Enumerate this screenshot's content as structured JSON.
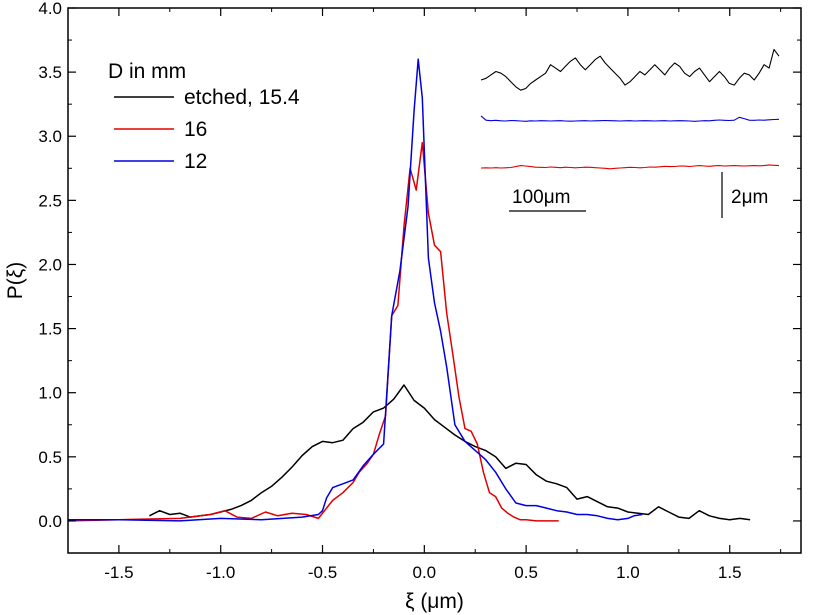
{
  "chart_data": {
    "type": "line",
    "xlabel": "ξ (μm)",
    "ylabel": "P(ξ)",
    "xlim": [
      -1.75,
      1.85
    ],
    "ylim": [
      -0.25,
      4.0
    ],
    "x_ticks": [
      -1.5,
      -1.0,
      -0.5,
      0.0,
      0.5,
      1.0,
      1.5
    ],
    "x_tick_labels": [
      "-1.5",
      "-1.0",
      "-0.5",
      "0.0",
      "0.5",
      "1.0",
      "1.5"
    ],
    "y_ticks": [
      0.0,
      0.5,
      1.0,
      1.5,
      2.0,
      2.5,
      3.0,
      3.5,
      4.0
    ],
    "y_tick_labels": [
      "0.0",
      "0.5",
      "1.0",
      "1.5",
      "2.0",
      "2.5",
      "3.0",
      "3.5",
      "4.0"
    ],
    "legend": {
      "title": "D in mm",
      "placement": "top-left",
      "entries": [
        "etched, 15.4",
        "16",
        "12"
      ]
    },
    "series": [
      {
        "name": "etched, 15.4",
        "color": "#000000",
        "x": [
          -1.35,
          -1.3,
          -1.25,
          -1.2,
          -1.15,
          -1.1,
          -1.05,
          -1.0,
          -0.95,
          -0.9,
          -0.85,
          -0.8,
          -0.75,
          -0.7,
          -0.65,
          -0.6,
          -0.55,
          -0.5,
          -0.45,
          -0.4,
          -0.35,
          -0.3,
          -0.25,
          -0.2,
          -0.15,
          -0.1,
          -0.05,
          0.0,
          0.05,
          0.1,
          0.15,
          0.2,
          0.25,
          0.3,
          0.35,
          0.4,
          0.45,
          0.5,
          0.55,
          0.6,
          0.65,
          0.7,
          0.75,
          0.8,
          0.85,
          0.9,
          0.95,
          1.0,
          1.05,
          1.1,
          1.15,
          1.2,
          1.25,
          1.3,
          1.35,
          1.4,
          1.45,
          1.5,
          1.55,
          1.6
        ],
        "y": [
          0.04,
          0.08,
          0.05,
          0.06,
          0.03,
          0.04,
          0.05,
          0.07,
          0.09,
          0.12,
          0.16,
          0.22,
          0.27,
          0.34,
          0.42,
          0.51,
          0.58,
          0.62,
          0.61,
          0.63,
          0.72,
          0.77,
          0.85,
          0.88,
          0.95,
          1.06,
          0.94,
          0.88,
          0.79,
          0.73,
          0.67,
          0.62,
          0.58,
          0.55,
          0.5,
          0.41,
          0.45,
          0.44,
          0.36,
          0.31,
          0.29,
          0.26,
          0.17,
          0.19,
          0.15,
          0.11,
          0.1,
          0.07,
          0.06,
          0.05,
          0.11,
          0.07,
          0.03,
          0.02,
          0.08,
          0.04,
          0.02,
          0.01,
          0.02,
          0.01
        ]
      },
      {
        "name": "16",
        "color": "#e00000",
        "x": [
          -1.75,
          -1.5,
          -1.2,
          -1.05,
          -0.98,
          -0.92,
          -0.85,
          -0.78,
          -0.72,
          -0.65,
          -0.58,
          -0.52,
          -0.45,
          -0.4,
          -0.35,
          -0.32,
          -0.28,
          -0.25,
          -0.22,
          -0.19,
          -0.16,
          -0.13,
          -0.1,
          -0.07,
          -0.04,
          -0.01,
          0.02,
          0.05,
          0.08,
          0.11,
          0.14,
          0.17,
          0.2,
          0.23,
          0.26,
          0.29,
          0.32,
          0.35,
          0.38,
          0.41,
          0.44,
          0.47,
          0.5,
          0.55,
          0.6,
          0.66
        ],
        "y": [
          0.0,
          0.01,
          0.02,
          0.05,
          0.08,
          0.03,
          0.02,
          0.07,
          0.04,
          0.06,
          0.05,
          0.02,
          0.16,
          0.22,
          0.3,
          0.38,
          0.45,
          0.52,
          0.68,
          0.82,
          1.6,
          1.68,
          2.3,
          2.75,
          2.58,
          2.95,
          2.4,
          2.15,
          2.1,
          1.62,
          1.3,
          0.97,
          0.72,
          0.7,
          0.6,
          0.38,
          0.22,
          0.19,
          0.1,
          0.06,
          0.03,
          0.01,
          0.01,
          0.0,
          0.0,
          0.0
        ]
      },
      {
        "name": "12",
        "color": "#0000e0",
        "x": [
          -1.75,
          -1.5,
          -1.2,
          -1.0,
          -0.8,
          -0.6,
          -0.52,
          -0.5,
          -0.48,
          -0.45,
          -0.4,
          -0.35,
          -0.3,
          -0.25,
          -0.2,
          -0.16,
          -0.12,
          -0.08,
          -0.05,
          -0.03,
          -0.01,
          0.02,
          0.05,
          0.08,
          0.11,
          0.15,
          0.2,
          0.25,
          0.3,
          0.35,
          0.4,
          0.45,
          0.5,
          0.55,
          0.6,
          0.65,
          0.7,
          0.75,
          0.8,
          0.85,
          0.9,
          0.95,
          1.0,
          1.03,
          1.07
        ],
        "y": [
          0.01,
          0.01,
          0.0,
          0.02,
          0.01,
          0.03,
          0.05,
          0.08,
          0.18,
          0.26,
          0.29,
          0.32,
          0.43,
          0.52,
          0.6,
          1.6,
          1.95,
          2.45,
          3.2,
          3.6,
          3.3,
          2.05,
          1.7,
          1.48,
          1.2,
          0.75,
          0.62,
          0.55,
          0.48,
          0.38,
          0.25,
          0.14,
          0.12,
          0.12,
          0.1,
          0.08,
          0.07,
          0.05,
          0.05,
          0.04,
          0.02,
          0.01,
          0.02,
          0.04,
          0.05
        ]
      }
    ],
    "inset": {
      "description_traces": [
        "etched, 15.4",
        "12",
        "16"
      ],
      "scale_x_label": "100μm",
      "scale_y_label": "2μm",
      "traces": [
        {
          "name": "etched, 15.4",
          "color": "#000000",
          "y_um": [
            0.0,
            0.1,
            0.3,
            0.5,
            0.4,
            0.2,
            -0.1,
            -0.4,
            -0.6,
            -0.5,
            -0.2,
            0.0,
            0.2,
            0.4,
            0.9,
            0.7,
            0.5,
            0.8,
            1.1,
            1.3,
            0.9,
            0.6,
            0.9,
            1.2,
            1.4,
            1.0,
            0.7,
            0.4,
            0.1,
            -0.3,
            -0.1,
            0.2,
            0.5,
            0.3,
            0.6,
            0.9,
            0.6,
            0.3,
            0.7,
            1.0,
            0.8,
            0.4,
            0.2,
            0.5,
            0.7,
            0.3,
            -0.1,
            0.2,
            0.5,
            0.2,
            -0.2,
            -0.3,
            0.1,
            0.4,
            0.3,
            0.0,
            0.4,
            0.9,
            0.7,
            1.8,
            1.4
          ]
        },
        {
          "name": "12",
          "color": "#0000e0",
          "y_um": [
            0.3,
            0.05,
            0.02,
            0.04,
            0.01,
            0.0,
            0.03,
            0.02,
            0.0,
            -0.02,
            0.01,
            0.0,
            0.02,
            0.01,
            0.0,
            0.01,
            0.02,
            0.0,
            -0.01,
            0.0,
            0.01,
            0.02,
            0.0,
            0.01,
            0.02,
            0.03,
            0.02,
            0.01,
            0.0,
            0.01,
            0.02,
            0.0,
            0.01,
            0.02,
            0.01,
            0.0,
            0.01,
            0.02,
            0.0,
            0.01,
            0.02,
            0.01,
            0.0,
            -0.02,
            0.0,
            0.02,
            0.01,
            0.04,
            0.06,
            0.04,
            0.03,
            0.05,
            0.22,
            0.14,
            0.05,
            0.04,
            0.06,
            0.05,
            0.07,
            0.09,
            0.1
          ]
        },
        {
          "name": "16",
          "color": "#e00000",
          "y_um": [
            0.0,
            0.01,
            0.0,
            0.02,
            0.0,
            0.01,
            0.03,
            0.08,
            0.14,
            0.12,
            0.08,
            0.05,
            0.04,
            0.03,
            0.06,
            0.04,
            0.02,
            0.05,
            0.03,
            0.01,
            0.03,
            0.05,
            0.04,
            0.02,
            0.0,
            -0.02,
            -0.05,
            -0.02,
            0.0,
            0.02,
            0.04,
            0.03,
            0.01,
            0.03,
            0.06,
            0.05,
            0.07,
            0.1,
            0.08,
            0.09,
            0.12,
            0.11,
            0.09,
            0.12,
            0.14,
            0.12,
            0.1,
            0.13,
            0.14,
            0.12,
            0.13,
            0.14,
            0.13,
            0.12,
            0.13,
            0.14,
            0.13,
            0.14,
            0.18,
            0.16,
            0.14
          ]
        }
      ]
    }
  }
}
